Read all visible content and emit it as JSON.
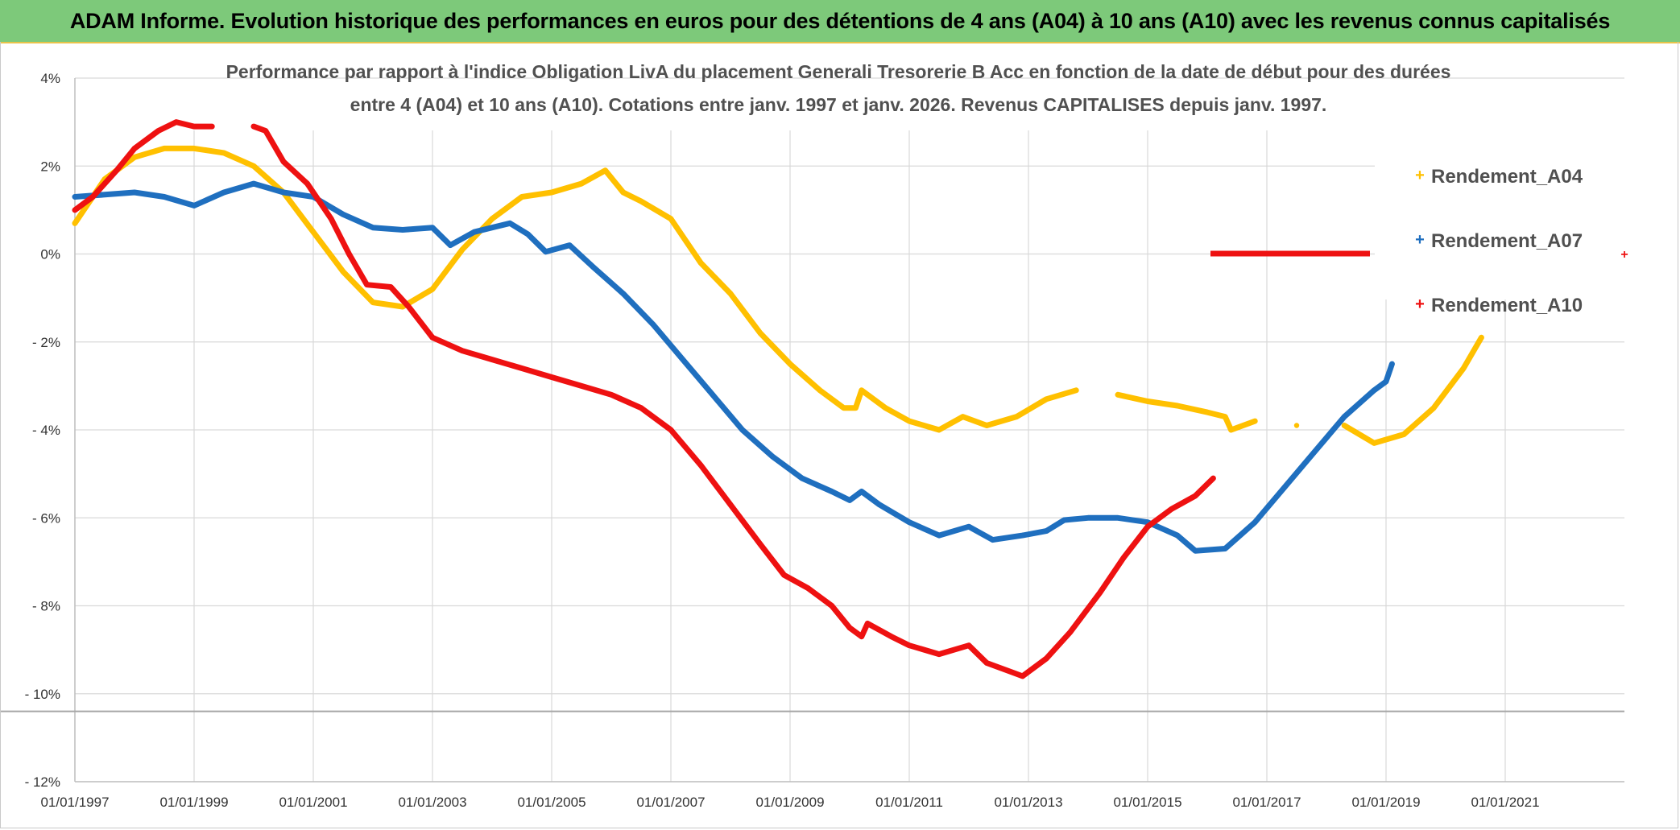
{
  "banner": {
    "title": "ADAM Informe. Evolution historique des performances en euros pour des détentions de 4 ans (A04) à 10 ans (A10) avec les revenus connus capitalisés"
  },
  "colors": {
    "banner_bg": "#7dc97a",
    "A04": "#ffc000",
    "A07": "#1f6fbf",
    "A10": "#ee1111",
    "grid": "#d9d9d9"
  },
  "chart_data": {
    "type": "line",
    "title_line1": "Performance  par rapport à l'indice Obligation LivA  du placement Generali Tresorerie B Acc en fonction de la date de début pour des durées",
    "title_line2": "entre 4 (A04) et 10 ans (A10). Cotations entre janv. 1997 et janv. 2026. Revenus CAPITALISES depuis janv. 1997.",
    "xlabel": "",
    "ylabel": "",
    "x_unit": "year",
    "xlim": [
      1997.0,
      2023.0
    ],
    "ylim": [
      -12,
      4
    ],
    "y_ticks": [
      4,
      2,
      0,
      -2,
      -4,
      -6,
      -8,
      -10,
      -12
    ],
    "y_tick_labels": [
      "4%",
      "2%",
      "0%",
      "- 2%",
      "- 4%",
      "- 6%",
      "- 8%",
      "- 10%",
      "- 12%"
    ],
    "x_ticks": [
      1997,
      1999,
      2001,
      2003,
      2005,
      2007,
      2009,
      2011,
      2013,
      2015,
      2017,
      2019,
      2021
    ],
    "x_tick_labels": [
      "01/01/1997",
      "01/01/1999",
      "01/01/2001",
      "01/01/2003",
      "01/01/2005",
      "01/01/2007",
      "01/01/2009",
      "01/01/2011",
      "01/01/2013",
      "01/01/2015",
      "01/01/2017",
      "01/01/2019",
      "01/01/2021"
    ],
    "reference_line": -10.4,
    "legend_position": "right",
    "series": [
      {
        "name": "Rendement_A04",
        "color": "#ffc000",
        "points": [
          [
            1997.0,
            0.7
          ],
          [
            1997.5,
            1.7
          ],
          [
            1998.0,
            2.2
          ],
          [
            1998.5,
            2.4
          ],
          [
            1999.0,
            2.4
          ],
          [
            1999.5,
            2.3
          ],
          [
            2000.0,
            2.0
          ],
          [
            2000.5,
            1.4
          ],
          [
            2001.0,
            0.5
          ],
          [
            2001.5,
            -0.4
          ],
          [
            2002.0,
            -1.1
          ],
          [
            2002.5,
            -1.2
          ],
          [
            2003.0,
            -0.8
          ],
          [
            2003.5,
            0.1
          ],
          [
            2004.0,
            0.8
          ],
          [
            2004.5,
            1.3
          ],
          [
            2005.0,
            1.4
          ],
          [
            2005.5,
            1.6
          ],
          [
            2005.9,
            1.9
          ],
          [
            2006.2,
            1.4
          ],
          [
            2006.5,
            1.2
          ],
          [
            2007.0,
            0.8
          ],
          [
            2007.5,
            -0.2
          ],
          [
            2008.0,
            -0.9
          ],
          [
            2008.5,
            -1.8
          ],
          [
            2009.0,
            -2.5
          ],
          [
            2009.5,
            -3.1
          ],
          [
            2009.9,
            -3.5
          ],
          [
            2010.1,
            -3.5
          ],
          [
            2010.2,
            -3.1
          ],
          [
            2010.6,
            -3.5
          ],
          [
            2011.0,
            -3.8
          ],
          [
            2011.5,
            -4.0
          ],
          [
            2011.9,
            -3.7
          ],
          [
            2012.3,
            -3.9
          ],
          [
            2012.8,
            -3.7
          ],
          [
            2013.3,
            -3.3
          ],
          [
            2013.8,
            -3.1
          ],
          [
            2014.5,
            -3.2
          ],
          [
            2015.0,
            -3.35
          ],
          [
            2015.5,
            -3.45
          ],
          [
            2016.0,
            -3.6
          ],
          [
            2016.3,
            -3.7
          ],
          [
            2016.4,
            -4.0
          ],
          [
            2016.8,
            -3.8
          ],
          [
            2017.5,
            -3.9
          ],
          [
            2018.3,
            -3.9
          ],
          [
            2018.8,
            -4.3
          ],
          [
            2019.3,
            -4.1
          ],
          [
            2019.8,
            -3.5
          ],
          [
            2020.3,
            -2.6
          ],
          [
            2020.6,
            -1.9
          ]
        ]
      },
      {
        "name": "Rendement_A07",
        "color": "#1f6fbf",
        "points": [
          [
            1997.0,
            1.3
          ],
          [
            1997.5,
            1.35
          ],
          [
            1998.0,
            1.4
          ],
          [
            1998.5,
            1.3
          ],
          [
            1999.0,
            1.1
          ],
          [
            1999.5,
            1.4
          ],
          [
            2000.0,
            1.6
          ],
          [
            2000.5,
            1.4
          ],
          [
            2001.0,
            1.3
          ],
          [
            2001.5,
            0.9
          ],
          [
            2002.0,
            0.6
          ],
          [
            2002.5,
            0.55
          ],
          [
            2003.0,
            0.6
          ],
          [
            2003.3,
            0.2
          ],
          [
            2003.7,
            0.5
          ],
          [
            2004.0,
            0.6
          ],
          [
            2004.3,
            0.7
          ],
          [
            2004.6,
            0.45
          ],
          [
            2004.9,
            0.05
          ],
          [
            2005.3,
            0.2
          ],
          [
            2005.7,
            -0.3
          ],
          [
            2006.2,
            -0.9
          ],
          [
            2006.7,
            -1.6
          ],
          [
            2007.2,
            -2.4
          ],
          [
            2007.7,
            -3.2
          ],
          [
            2008.2,
            -4.0
          ],
          [
            2008.7,
            -4.6
          ],
          [
            2009.2,
            -5.1
          ],
          [
            2009.7,
            -5.4
          ],
          [
            2010.0,
            -5.6
          ],
          [
            2010.2,
            -5.4
          ],
          [
            2010.5,
            -5.7
          ],
          [
            2011.0,
            -6.1
          ],
          [
            2011.5,
            -6.4
          ],
          [
            2012.0,
            -6.2
          ],
          [
            2012.4,
            -6.5
          ],
          [
            2012.9,
            -6.4
          ],
          [
            2013.3,
            -6.3
          ],
          [
            2013.6,
            -6.05
          ],
          [
            2014.0,
            -6.0
          ],
          [
            2014.5,
            -6.0
          ],
          [
            2015.0,
            -6.1
          ],
          [
            2015.5,
            -6.4
          ],
          [
            2015.8,
            -6.75
          ],
          [
            2016.3,
            -6.7
          ],
          [
            2016.8,
            -6.1
          ],
          [
            2017.3,
            -5.3
          ],
          [
            2017.8,
            -4.5
          ],
          [
            2018.3,
            -3.7
          ],
          [
            2018.8,
            -3.1
          ],
          [
            2019.0,
            -2.9
          ],
          [
            2019.1,
            -2.5
          ]
        ]
      },
      {
        "name": "Rendement_A10",
        "color": "#ee1111",
        "points": [
          [
            1997.0,
            1.0
          ],
          [
            1997.3,
            1.3
          ],
          [
            1997.7,
            1.9
          ],
          [
            1998.0,
            2.4
          ],
          [
            1998.4,
            2.8
          ],
          [
            1998.7,
            3.0
          ],
          [
            1999.0,
            2.9
          ],
          [
            1999.3,
            2.9
          ],
          [
            2000.0,
            2.9
          ],
          [
            2000.2,
            2.8
          ],
          [
            2000.5,
            2.1
          ],
          [
            2000.9,
            1.6
          ],
          [
            2001.3,
            0.8
          ],
          [
            2001.6,
            0.0
          ],
          [
            2001.9,
            -0.7
          ],
          [
            2002.3,
            -0.75
          ],
          [
            2002.6,
            -1.2
          ],
          [
            2003.0,
            -1.9
          ],
          [
            2003.5,
            -2.2
          ],
          [
            2004.0,
            -2.4
          ],
          [
            2004.5,
            -2.6
          ],
          [
            2005.0,
            -2.8
          ],
          [
            2005.5,
            -3.0
          ],
          [
            2006.0,
            -3.2
          ],
          [
            2006.5,
            -3.5
          ],
          [
            2007.0,
            -4.0
          ],
          [
            2007.5,
            -4.8
          ],
          [
            2008.0,
            -5.7
          ],
          [
            2008.5,
            -6.6
          ],
          [
            2008.9,
            -7.3
          ],
          [
            2009.3,
            -7.6
          ],
          [
            2009.7,
            -8.0
          ],
          [
            2010.0,
            -8.5
          ],
          [
            2010.2,
            -8.7
          ],
          [
            2010.3,
            -8.4
          ],
          [
            2010.7,
            -8.7
          ],
          [
            2011.0,
            -8.9
          ],
          [
            2011.5,
            -9.1
          ],
          [
            2012.0,
            -8.9
          ],
          [
            2012.3,
            -9.3
          ],
          [
            2012.7,
            -9.5
          ],
          [
            2012.9,
            -9.6
          ],
          [
            2013.3,
            -9.2
          ],
          [
            2013.7,
            -8.6
          ],
          [
            2014.2,
            -7.7
          ],
          [
            2014.6,
            -6.9
          ],
          [
            2015.0,
            -6.2
          ],
          [
            2015.4,
            -5.8
          ],
          [
            2015.8,
            -5.5
          ],
          [
            2016.1,
            -5.1
          ]
        ]
      }
    ]
  },
  "legend": {
    "items": [
      "Rendement_A04",
      "Rendement_A07",
      "Rendement_A10"
    ],
    "marker_glyph": "+"
  }
}
